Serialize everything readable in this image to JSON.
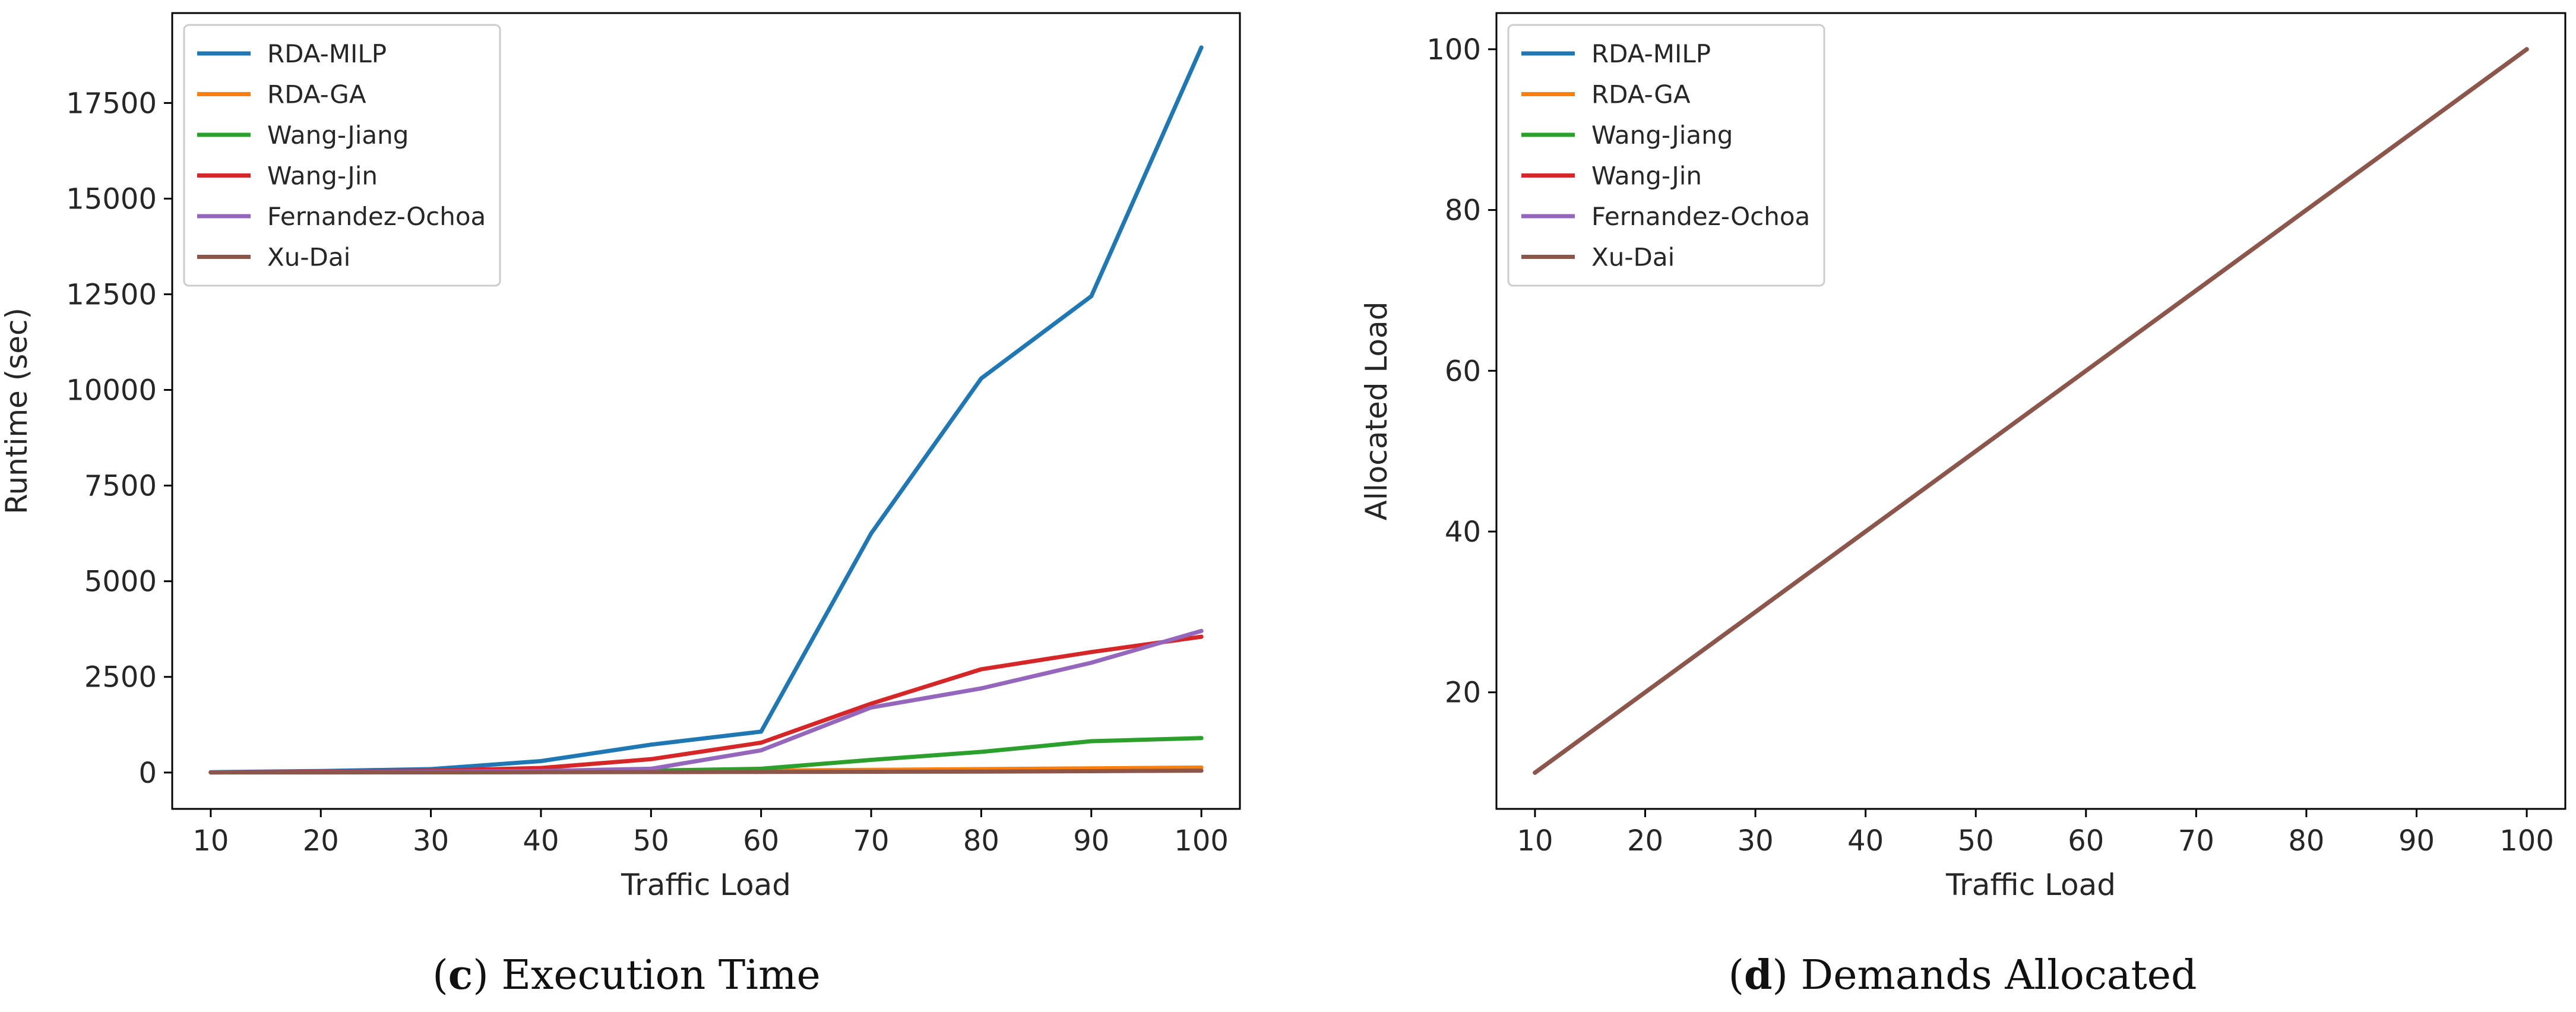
{
  "chart_data": [
    {
      "id": "c",
      "type": "line",
      "title": "",
      "caption": {
        "letter": "c",
        "text": "Execution Time"
      },
      "xlabel": "Traffic Load",
      "ylabel": "Runtime (sec)",
      "x": [
        10,
        20,
        30,
        40,
        50,
        60,
        70,
        80,
        90,
        100
      ],
      "xlim": [
        6.5,
        103.5
      ],
      "ylim": [
        -950,
        19850
      ],
      "xticks": [
        10,
        20,
        30,
        40,
        50,
        60,
        70,
        80,
        90,
        100
      ],
      "yticks": [
        0,
        2500,
        5000,
        7500,
        10000,
        12500,
        15000,
        17500
      ],
      "ytick_labels": [
        "0",
        "2500",
        "5000",
        "7500",
        "10000",
        "12500",
        "15000",
        "17500"
      ],
      "grid": false,
      "legend": "upper-left",
      "series": [
        {
          "name": "RDA-MILP",
          "color": "#1f77b4",
          "values": [
            10,
            40,
            90,
            300,
            730,
            1070,
            6250,
            10300,
            12450,
            18950
          ]
        },
        {
          "name": "RDA-GA",
          "color": "#ff7f0e",
          "values": [
            5,
            10,
            15,
            25,
            35,
            50,
            70,
            90,
            110,
            130
          ]
        },
        {
          "name": "Wang-Jiang",
          "color": "#2ca02c",
          "values": [
            5,
            10,
            20,
            30,
            50,
            100,
            330,
            540,
            820,
            900
          ]
        },
        {
          "name": "Wang-Jin",
          "color": "#d62728",
          "values": [
            5,
            20,
            50,
            120,
            350,
            780,
            1800,
            2700,
            3150,
            3550
          ]
        },
        {
          "name": "Fernandez-Ochoa",
          "color": "#9467bd",
          "values": [
            5,
            10,
            20,
            40,
            100,
            580,
            1700,
            2200,
            2870,
            3700
          ]
        },
        {
          "name": "Xu-Dai",
          "color": "#8c564b",
          "values": [
            2,
            3,
            5,
            8,
            12,
            15,
            20,
            25,
            35,
            50
          ]
        }
      ]
    },
    {
      "id": "d",
      "type": "line",
      "title": "",
      "caption": {
        "letter": "d",
        "text": "Demands Allocated"
      },
      "xlabel": "Traffic Load",
      "ylabel": "Allocated Load",
      "x": [
        10,
        20,
        30,
        40,
        50,
        60,
        70,
        80,
        90,
        100
      ],
      "xlim": [
        6.5,
        103.5
      ],
      "ylim": [
        5.5,
        104.5
      ],
      "xticks": [
        10,
        20,
        30,
        40,
        50,
        60,
        70,
        80,
        90,
        100
      ],
      "yticks": [
        20,
        40,
        60,
        80,
        100
      ],
      "ytick_labels": [
        "20",
        "40",
        "60",
        "80",
        "100"
      ],
      "grid": false,
      "legend": "upper-left",
      "series": [
        {
          "name": "RDA-MILP",
          "color": "#1f77b4",
          "values": [
            10,
            20,
            30,
            40,
            50,
            60,
            70,
            80,
            90,
            100
          ]
        },
        {
          "name": "RDA-GA",
          "color": "#ff7f0e",
          "values": [
            10,
            20,
            30,
            40,
            50,
            60,
            70,
            80,
            90,
            100
          ]
        },
        {
          "name": "Wang-Jiang",
          "color": "#2ca02c",
          "values": [
            10,
            20,
            30,
            40,
            50,
            60,
            70,
            80,
            90,
            100
          ]
        },
        {
          "name": "Wang-Jin",
          "color": "#d62728",
          "values": [
            10,
            20,
            30,
            40,
            50,
            60,
            70,
            80,
            90,
            100
          ]
        },
        {
          "name": "Fernandez-Ochoa",
          "color": "#9467bd",
          "values": [
            10,
            20,
            30,
            40,
            50,
            60,
            70,
            80,
            90,
            100
          ]
        },
        {
          "name": "Xu-Dai",
          "color": "#8c564b",
          "values": [
            10,
            20,
            30,
            40,
            50,
            60,
            70,
            80,
            90,
            100
          ]
        }
      ]
    }
  ]
}
